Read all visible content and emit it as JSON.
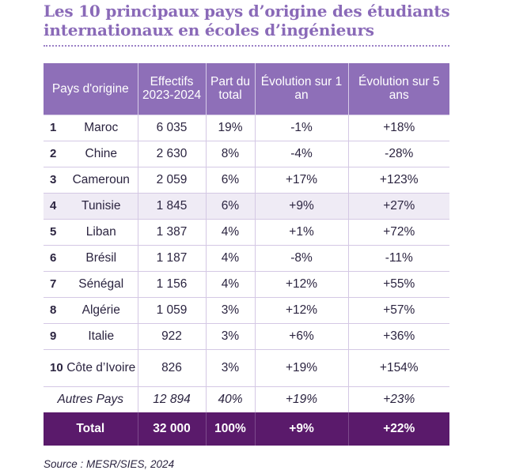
{
  "title": "Les 10 principaux pays d’origine des étudiants internationaux en écoles d’ingénieurs",
  "headers": {
    "country": "Pays d'origine",
    "effectifs": "Effectifs 2023-2024",
    "part": "Part du total",
    "evo1": "Évolution sur 1 an",
    "evo5": "Évolution sur 5 ans"
  },
  "rows": [
    {
      "rank": "1",
      "country": "Maroc",
      "effectifs": "6 035",
      "part": "19%",
      "evo1": "-1%",
      "evo5": "+18%"
    },
    {
      "rank": "2",
      "country": "Chine",
      "effectifs": "2 630",
      "part": "8%",
      "evo1": "-4%",
      "evo5": "-28%"
    },
    {
      "rank": "3",
      "country": "Cameroun",
      "effectifs": "2 059",
      "part": "6%",
      "evo1": "+17%",
      "evo5": "+123%"
    },
    {
      "rank": "4",
      "country": "Tunisie",
      "effectifs": "1 845",
      "part": "6%",
      "evo1": "+9%",
      "evo5": "+27%"
    },
    {
      "rank": "5",
      "country": "Liban",
      "effectifs": "1 387",
      "part": "4%",
      "evo1": "+1%",
      "evo5": "+72%"
    },
    {
      "rank": "6",
      "country": "Brésil",
      "effectifs": "1 187",
      "part": "4%",
      "evo1": "-8%",
      "evo5": "-11%"
    },
    {
      "rank": "7",
      "country": "Sénégal",
      "effectifs": "1 156",
      "part": "4%",
      "evo1": "+12%",
      "evo5": "+55%"
    },
    {
      "rank": "8",
      "country": "Algérie",
      "effectifs": "1 059",
      "part": "3%",
      "evo1": "+12%",
      "evo5": "+57%"
    },
    {
      "rank": "9",
      "country": "Italie",
      "effectifs": "922",
      "part": "3%",
      "evo1": "+6%",
      "evo5": "+36%"
    },
    {
      "rank": "10",
      "country": "Côte d’Ivoire",
      "effectifs": "826",
      "part": "3%",
      "evo1": "+19%",
      "evo5": "+154%"
    }
  ],
  "others": {
    "label": "Autres Pays",
    "effectifs": "12 894",
    "part": "40%",
    "evo1": "+19%",
    "evo5": "+23%"
  },
  "total": {
    "label": "Total",
    "effectifs": "32 000",
    "part": "100%",
    "evo1": "+9%",
    "evo5": "+22%"
  },
  "source": "Source : MESR/SIES, 2024",
  "colors": {
    "header": "#8e6fb8",
    "title": "#8a6ab8",
    "total": "#5a1a6b",
    "alt_row": "#efebf5"
  }
}
